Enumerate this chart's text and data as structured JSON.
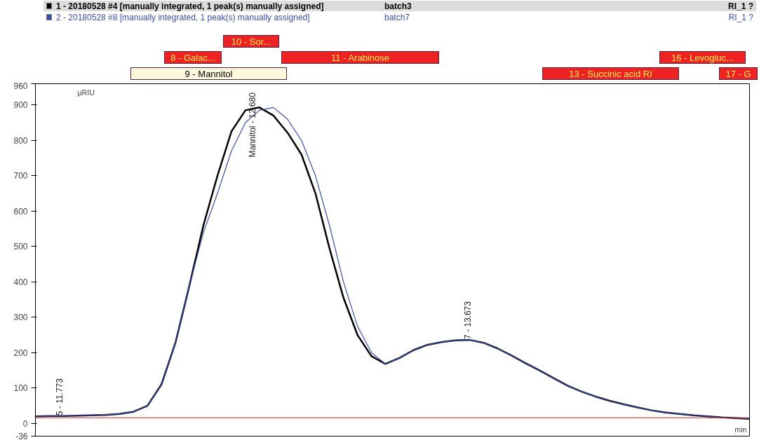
{
  "chart_data": {
    "type": "line",
    "ylabel": "µRIU",
    "xlabel": "min",
    "categories": [
      null,
      null,
      null,
      null,
      null,
      null,
      null,
      null,
      null,
      null,
      null,
      null,
      null,
      null,
      null,
      null,
      null,
      null,
      null,
      null,
      null,
      null,
      null,
      null,
      null,
      null,
      null,
      null,
      null,
      null,
      null,
      null,
      null,
      null,
      null,
      null,
      null,
      null,
      null,
      null,
      null,
      null,
      null,
      null,
      null,
      null,
      null,
      null,
      null,
      null,
      null,
      null
    ],
    "series": [
      {
        "name": "1 - 20180528 #4 [manually integrated, 1 peak(s) manually assigned]",
        "color": "#000000",
        "values": [
          20,
          21,
          21,
          22,
          23,
          24,
          27,
          33,
          50,
          110,
          228,
          390,
          560,
          700,
          825,
          885,
          893,
          870,
          822,
          760,
          650,
          495,
          355,
          250,
          190,
          168,
          185,
          207,
          222,
          230,
          235,
          236,
          228,
          212,
          192,
          170,
          150,
          128,
          107,
          90,
          76,
          64,
          54,
          45,
          37,
          31,
          27,
          23,
          20,
          17,
          15,
          13
        ]
      },
      {
        "name": "2 - 20180528 #8 [manually integrated, 1 peak(s) manually assigned]",
        "color": "#3a4fb0",
        "values": [
          20,
          21,
          21,
          22,
          23,
          24,
          27,
          33,
          50,
          110,
          228,
          390,
          540,
          650,
          770,
          850,
          885,
          893,
          860,
          800,
          700,
          560,
          400,
          275,
          200,
          168,
          185,
          207,
          222,
          230,
          235,
          236,
          228,
          212,
          192,
          170,
          150,
          128,
          107,
          90,
          76,
          64,
          54,
          45,
          37,
          31,
          27,
          23,
          20,
          17,
          15,
          13
        ]
      }
    ],
    "ylim": [
      -36,
      960
    ],
    "yticks": [
      -36,
      0,
      100,
      200,
      300,
      400,
      500,
      600,
      700,
      800,
      900,
      960
    ],
    "ref_lines": [
      {
        "axis": "y",
        "value": 16,
        "color": "#d92b2b"
      }
    ],
    "tick_labels": "y",
    "grid": false,
    "legend": "top",
    "annotations": [
      "5 - 11.773",
      "Mannitol - 12.680",
      "7 - 13.673",
      "batch3",
      "RI_1 ?",
      "batch7",
      "RI_1 ?",
      "10 - Sor...",
      "8 - Galac...",
      "11 - Arabinose",
      "16 - Levogluc...",
      "9 - Mannitol",
      "13 - Succinic acid RI",
      "17 - G"
    ]
  }
}
